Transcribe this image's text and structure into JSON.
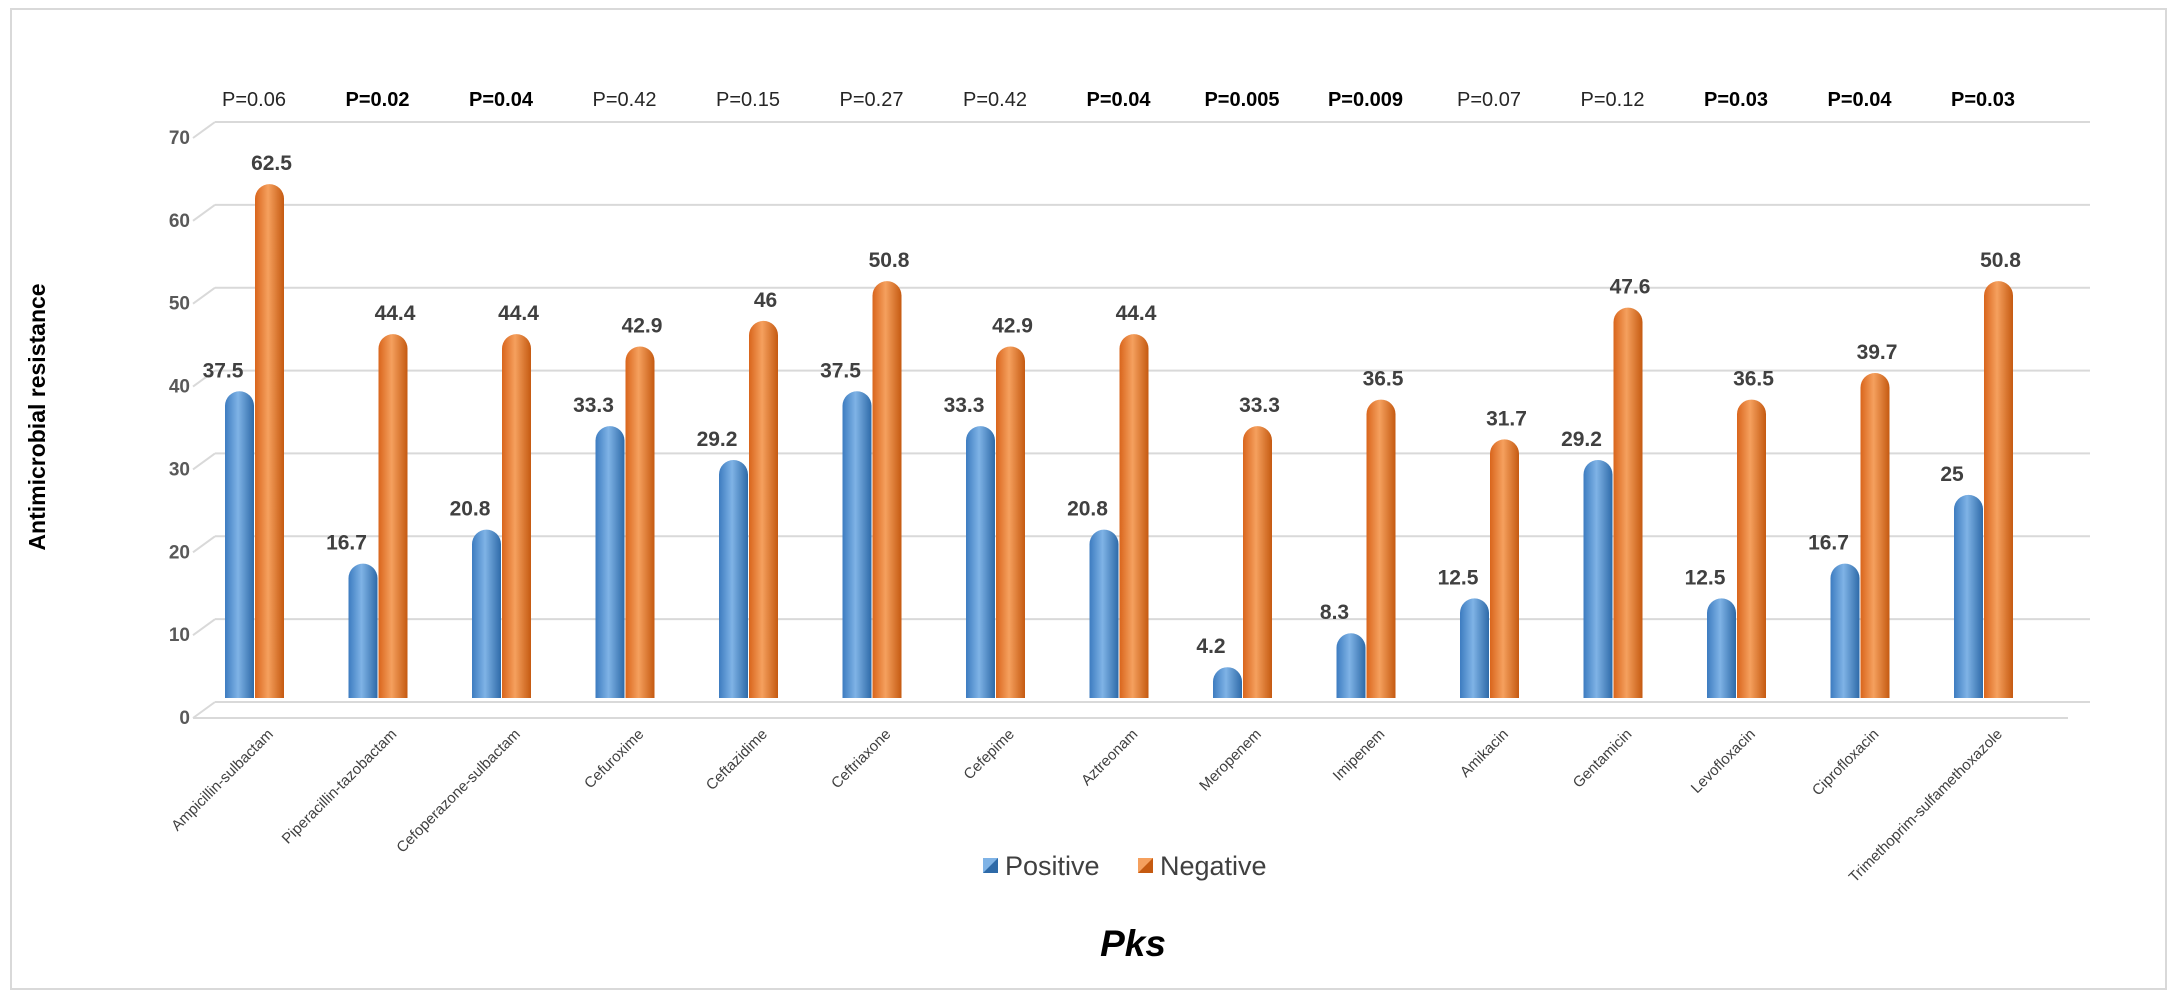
{
  "chart_data": {
    "type": "bar",
    "title": "",
    "xlabel": "Pks",
    "ylabel": "Antimicrobial resistance",
    "ylim": [
      0,
      70
    ],
    "yticks": [
      0,
      10,
      20,
      30,
      40,
      50,
      60,
      70
    ],
    "grid": true,
    "legend_position": "bottom",
    "categories": [
      "Ampicillin-sulbactam",
      "Piperacillin-tazobactam",
      "Cefoperazone-sulbactam",
      "Cefuroxime",
      "Ceftazidime",
      "Ceftriaxone",
      "Cefepime",
      "Aztreonam",
      "Meropenem",
      "Imipenem",
      "Amikacin",
      "Gentamicin",
      "Levofloxacin",
      "Ciprofloxacin",
      "Trimethoprim-sulfamethoxazole"
    ],
    "series": [
      {
        "name": "Positive",
        "color": "#5b9bd5",
        "values": [
          37.5,
          16.7,
          20.8,
          33.3,
          29.2,
          37.5,
          33.3,
          20.8,
          4.2,
          8.3,
          12.5,
          29.2,
          12.5,
          16.7,
          25
        ]
      },
      {
        "name": "Negative",
        "color": "#ed7d31",
        "values": [
          62.5,
          44.4,
          44.4,
          42.9,
          46,
          50.8,
          42.9,
          44.4,
          33.3,
          36.5,
          31.7,
          47.6,
          36.5,
          39.7,
          50.8
        ]
      }
    ],
    "data_labels": [
      [
        "37.5",
        "16.7",
        "20.8",
        "33.3",
        "29.2",
        "37.5",
        "33.3",
        "20.8",
        "4.2",
        "8.3",
        "12.5",
        "29.2",
        "12.5",
        "16.7",
        "25"
      ],
      [
        "62.5",
        "44.4",
        "44.4",
        "42.9",
        "46",
        "50.8",
        "42.9",
        "44.4",
        "33.3",
        "36.5",
        "31.7",
        "47.6",
        "36.5",
        "39.7",
        "50.8"
      ]
    ],
    "annotations": [
      "P=0.06",
      "P=0.02",
      "P=0.04",
      "P=0.42",
      "P=0.15",
      "P=0.27",
      "P=0.42",
      "P=0.04",
      "P=0.005",
      "P=0.009",
      "P=0.07",
      "P=0.12",
      "P=0.03",
      "P=0.04",
      "P=0.03"
    ],
    "annotation_bold": [
      false,
      true,
      true,
      false,
      false,
      false,
      false,
      true,
      true,
      true,
      false,
      false,
      true,
      true,
      true
    ]
  }
}
